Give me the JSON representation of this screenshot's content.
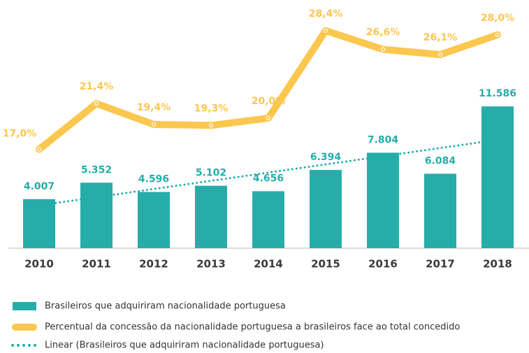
{
  "chart_data": {
    "type": "bar",
    "categories": [
      "2010",
      "2011",
      "2012",
      "2013",
      "2014",
      "2015",
      "2016",
      "2017",
      "2018"
    ],
    "ylim": [
      0,
      12000
    ],
    "y2lim": [
      0,
      30
    ],
    "legend": "bottom",
    "series": [
      {
        "name": "Brasileiros que adquiriram nacionalidade portuguesa",
        "type": "bar",
        "color": "#26adaa",
        "values": [
          4007,
          5352,
          4596,
          5102,
          4656,
          6394,
          7804,
          6084,
          11586
        ],
        "value_labels": [
          "4.007",
          "5.352",
          "4.596",
          "5.102",
          "4.656",
          "6.394",
          "7.804",
          "6.084",
          "11.586"
        ]
      },
      {
        "name": "Percentual da concessão da nacionalidade portuguesa a brasileiros face ao total concedido",
        "type": "line",
        "axis": "y2",
        "color": "#fcc74f",
        "values": [
          17.0,
          21.4,
          19.4,
          19.3,
          20.0,
          28.4,
          26.6,
          26.1,
          28.0
        ],
        "value_labels": [
          "17,0%",
          "21,4%",
          "19,4%",
          "19,3%",
          "20,0%",
          "28,4%",
          "26,6%",
          "26,1%",
          "28,0%"
        ]
      },
      {
        "name": "Linear (Brasileiros que adquiriram nacionalidade portuguesa)",
        "type": "trend",
        "color": "#26adaa",
        "values": [
          3494,
          4165,
          4835,
          5505,
          6176,
          6846,
          7516,
          8187,
          8857
        ]
      }
    ]
  }
}
